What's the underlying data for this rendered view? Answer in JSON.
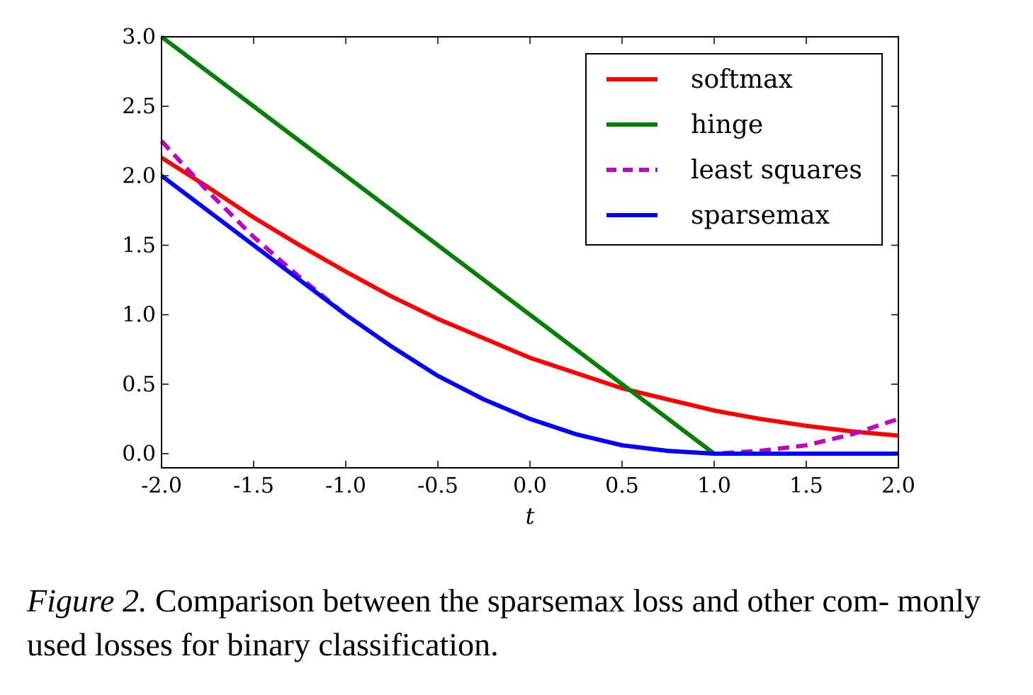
{
  "chart_data": {
    "type": "line",
    "xlabel": "t",
    "ylabel": "",
    "xlim": [
      -2.0,
      2.0
    ],
    "ylim": [
      0.0,
      3.0
    ],
    "x_ticks": [
      "-2.0",
      "-1.5",
      "-1.0",
      "-0.5",
      "0.0",
      "0.5",
      "1.0",
      "1.5",
      "2.0"
    ],
    "y_ticks": [
      "0.0",
      "0.5",
      "1.0",
      "1.5",
      "2.0",
      "2.5",
      "3.0"
    ],
    "grid": false,
    "legend_position": "top-right",
    "x": [
      -2.0,
      -1.75,
      -1.5,
      -1.25,
      -1.0,
      -0.75,
      -0.5,
      -0.25,
      0.0,
      0.25,
      0.5,
      0.75,
      1.0,
      1.25,
      1.5,
      1.75,
      2.0
    ],
    "series": [
      {
        "name": "softmax",
        "color": "#ff0000",
        "style": "solid",
        "values": [
          2.13,
          1.92,
          1.7,
          1.5,
          1.31,
          1.13,
          0.97,
          0.83,
          0.69,
          0.58,
          0.47,
          0.39,
          0.31,
          0.25,
          0.2,
          0.16,
          0.13
        ]
      },
      {
        "name": "hinge",
        "color": "#007f00",
        "style": "solid",
        "values": [
          3.0,
          2.75,
          2.5,
          2.25,
          2.0,
          1.75,
          1.5,
          1.25,
          1.0,
          0.75,
          0.5,
          0.25,
          0.0,
          0.0,
          0.0,
          0.0,
          0.0
        ]
      },
      {
        "name": "least squares",
        "color": "#bf00bf",
        "style": "dashed",
        "values": [
          2.25,
          1.89,
          1.56,
          1.27,
          1.0,
          0.77,
          0.56,
          0.39,
          0.25,
          0.14,
          0.06,
          0.02,
          0.0,
          0.02,
          0.06,
          0.14,
          0.25
        ]
      },
      {
        "name": "sparsemax",
        "color": "#0000ff",
        "style": "solid",
        "values": [
          2.0,
          1.75,
          1.5,
          1.25,
          1.0,
          0.77,
          0.56,
          0.39,
          0.25,
          0.14,
          0.06,
          0.02,
          0.0,
          0.0,
          0.0,
          0.0,
          0.0
        ]
      }
    ]
  },
  "caption": {
    "label": "Figure 2.",
    "text": "Comparison between the sparsemax loss and other com- monly used losses for binary classification."
  }
}
